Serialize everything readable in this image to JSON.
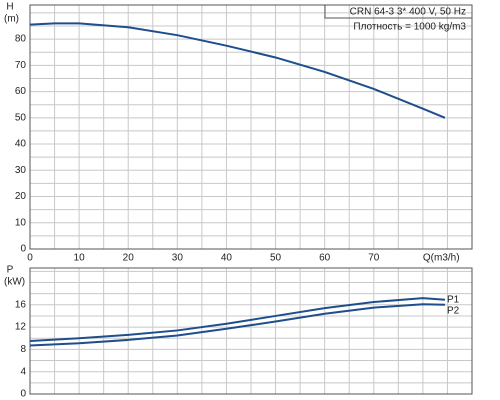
{
  "chart_data": [
    {
      "type": "line",
      "ylabel": "H",
      "yunit": "(m)",
      "annotations": [
        "CRN 64-3   3* 400 V, 50 Hz",
        "Плотность = 1000 kg/m3"
      ],
      "xlim": [
        0,
        90
      ],
      "ylim": [
        0,
        93
      ],
      "xticks": [
        0,
        10,
        20,
        30,
        40,
        50,
        60,
        70,
        {
          "value": 80,
          "label": "Q(m3/h)"
        }
      ],
      "yticks": [
        0,
        10,
        20,
        30,
        40,
        50,
        60,
        70,
        80
      ],
      "xgrid": [
        0,
        5,
        10,
        15,
        20,
        25,
        30,
        35,
        40,
        45,
        50,
        55,
        60,
        65,
        70,
        75,
        80,
        85,
        90
      ],
      "ygrid": [
        0,
        5,
        10,
        15,
        20,
        25,
        30,
        35,
        40,
        45,
        50,
        55,
        60,
        65,
        70,
        75,
        80,
        85,
        90
      ],
      "x": [
        0,
        5,
        10,
        20,
        30,
        40,
        50,
        60,
        70,
        80,
        84.5
      ],
      "series": [
        {
          "color": "#1f4e8c",
          "values": [
            85.5,
            86,
            86,
            84.5,
            81.5,
            77.5,
            73,
            67.5,
            61,
            53.5,
            50
          ]
        }
      ]
    },
    {
      "type": "line",
      "ylabel": "P",
      "yunit": "(kW)",
      "xlim": [
        0,
        90
      ],
      "ylim": [
        0,
        22.6
      ],
      "yticks": [
        0,
        4,
        8,
        12,
        16
      ],
      "xgrid": [
        0,
        5,
        10,
        15,
        20,
        25,
        30,
        35,
        40,
        45,
        50,
        55,
        60,
        65,
        70,
        75,
        80,
        85,
        90
      ],
      "ygrid": [
        0,
        2,
        4,
        6,
        8,
        10,
        12,
        14,
        16,
        18,
        20,
        22
      ],
      "x": [
        0,
        10,
        20,
        30,
        40,
        50,
        60,
        70,
        80,
        84.5
      ],
      "series": [
        {
          "name": "P1",
          "color": "#1f4e8c",
          "values": [
            9.5,
            10.0,
            10.6,
            11.4,
            12.6,
            14.0,
            15.4,
            16.5,
            17.2,
            16.9
          ]
        },
        {
          "name": "P2",
          "color": "#1f4e8c",
          "values": [
            8.7,
            9.1,
            9.7,
            10.5,
            11.7,
            13.0,
            14.4,
            15.5,
            16.1,
            16.0
          ]
        }
      ]
    }
  ]
}
